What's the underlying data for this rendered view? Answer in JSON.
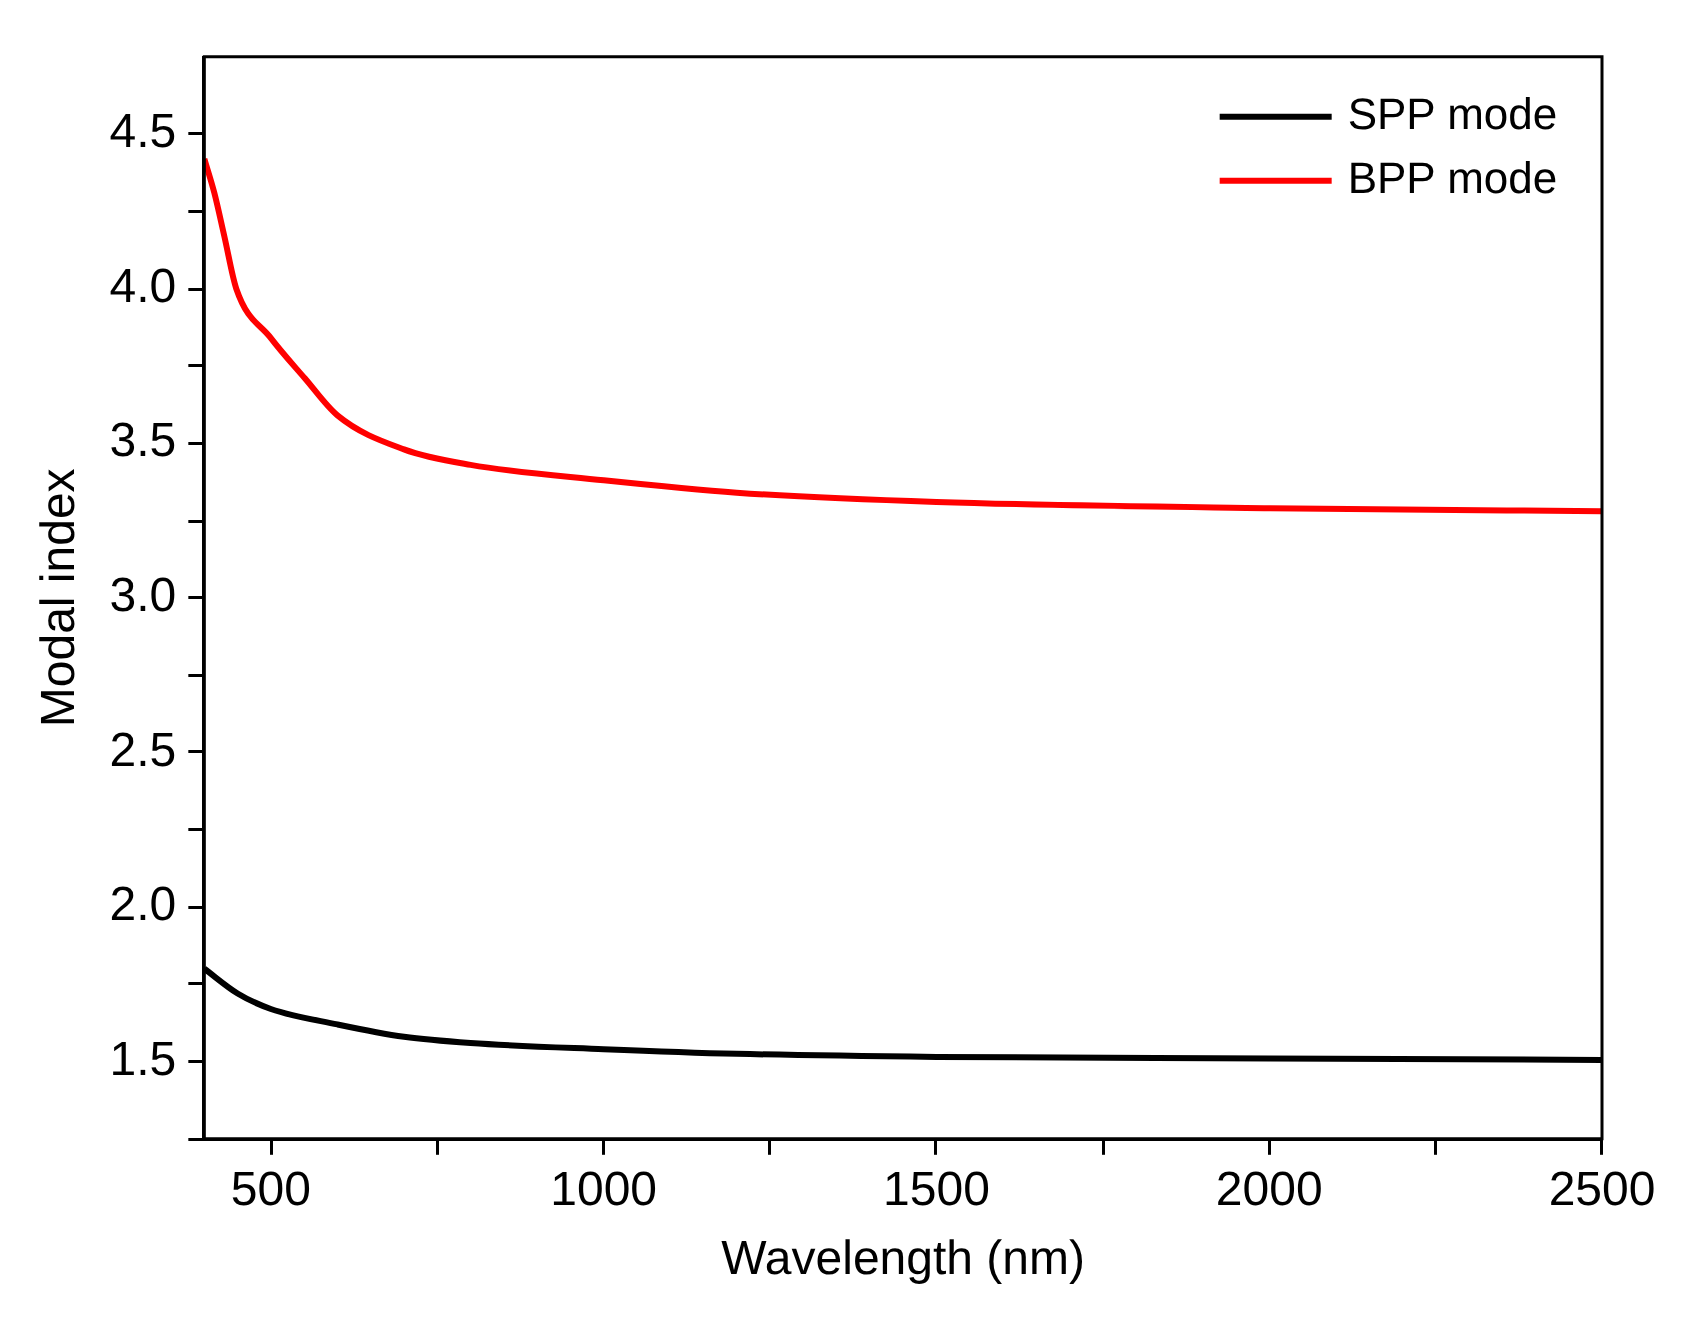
{
  "chart_data": {
    "type": "line",
    "xlabel": "Wavelength (nm)",
    "ylabel": "Modal index",
    "xlim": [
      400,
      2500
    ],
    "ylim": [
      1.25,
      4.75
    ],
    "xticks": [
      500,
      {
        "value": 750,
        "label": null
      },
      1000,
      {
        "value": 1250,
        "label": null
      },
      1500,
      {
        "value": 1750,
        "label": null
      },
      2000,
      {
        "value": 2250,
        "label": null
      },
      2500
    ],
    "yticks": [
      {
        "value": 1.25,
        "label": null
      },
      1.5,
      {
        "value": 1.75,
        "label": null
      },
      {
        "value": 2,
        "label": "2.0"
      },
      {
        "value": 2.25,
        "label": null
      },
      2.5,
      {
        "value": 2.75,
        "label": null
      },
      {
        "value": 3,
        "label": "3.0"
      },
      {
        "value": 3.25,
        "label": null
      },
      3.5,
      {
        "value": 3.75,
        "label": null
      },
      {
        "value": 4,
        "label": "4.0"
      },
      {
        "value": 4.25,
        "label": null
      },
      4.5
    ],
    "grid": false,
    "legend": "top right",
    "marker": "none",
    "line_style": "solid",
    "series": [
      {
        "name": "SPP mode",
        "color": "#000000",
        "x": [
          400,
          450,
          500,
          600,
          700,
          800,
          1000,
          1200,
          1500,
          2000,
          2500
        ],
        "values": [
          1.8,
          1.72,
          1.67,
          1.62,
          1.58,
          1.56,
          1.54,
          1.525,
          1.515,
          1.51,
          1.505
        ]
      },
      {
        "name": "BPP mode",
        "color": "#ff0000",
        "x": [
          400,
          415,
          430,
          448,
          500,
          551,
          600,
          700,
          800,
          1000,
          1200,
          1500,
          2000,
          2500
        ],
        "values": [
          4.42,
          4.31,
          4.17,
          4.0,
          3.84,
          3.71,
          3.59,
          3.48,
          3.43,
          3.38,
          3.34,
          3.31,
          3.29,
          3.28
        ]
      }
    ]
  }
}
